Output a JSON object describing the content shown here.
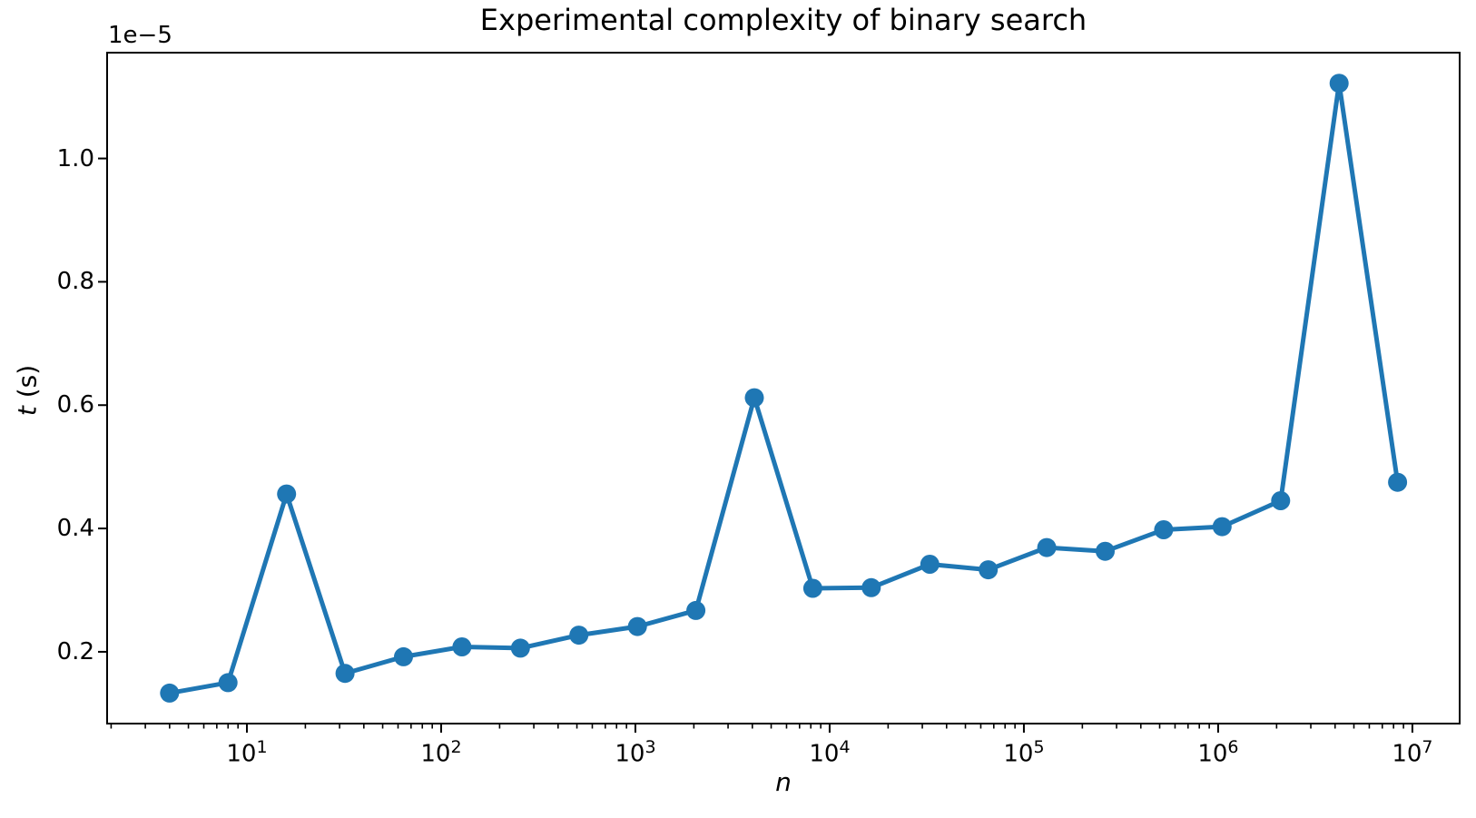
{
  "figure": {
    "background": "#ffffff"
  },
  "chart_data": {
    "type": "line",
    "title": "Experimental complexity of binary search",
    "xlabel": "n",
    "ylabel": "t (s)",
    "ylabel_var": "t",
    "ylabel_unit": " (s)",
    "y_offset_text": "1e−5",
    "x_scale": "log",
    "y_unit_multiplier": 1e-05,
    "x": [
      4,
      8,
      16,
      32,
      64,
      128,
      256,
      512,
      1024,
      2048,
      4096,
      8192,
      16384,
      32768,
      65536,
      131072,
      262144,
      524288,
      1048576,
      2097152,
      4194304,
      8388608
    ],
    "y": [
      0.133,
      0.15,
      0.456,
      0.165,
      0.192,
      0.208,
      0.206,
      0.227,
      0.241,
      0.267,
      0.612,
      0.303,
      0.304,
      0.342,
      0.333,
      0.369,
      0.363,
      0.398,
      0.403,
      0.445,
      1.122,
      0.475
    ],
    "x_axis": {
      "tick_base": "10",
      "tick_exponents": [
        1,
        2,
        3,
        4,
        5,
        6,
        7
      ],
      "range_log10": [
        0.2804,
        7.2434
      ],
      "minor_ticks": true
    },
    "y_axis": {
      "ticks": [
        0.2,
        0.4,
        0.6,
        0.8,
        1.0
      ],
      "tick_labels": [
        "0.2",
        "0.4",
        "0.6",
        "0.8",
        "1.0"
      ],
      "range": [
        0.0836,
        1.1716
      ]
    },
    "line_color": "#1f77b4",
    "marker": "o",
    "grid": false,
    "legend": null
  }
}
